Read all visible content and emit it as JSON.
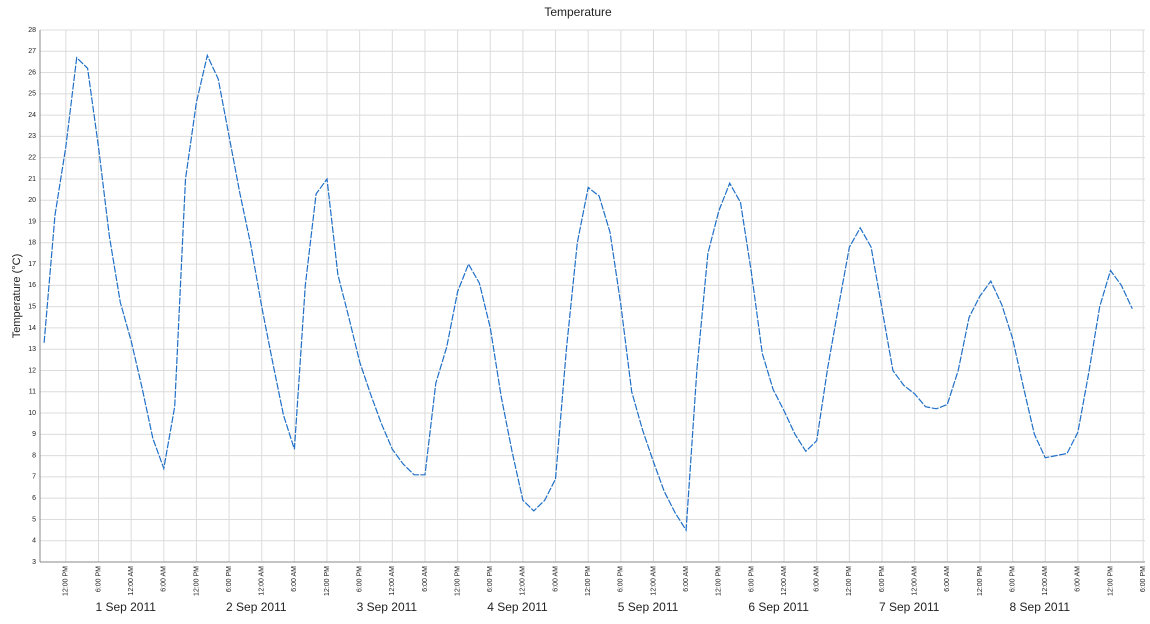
{
  "chart_data": {
    "type": "line",
    "title": "Temperature",
    "y_label": "Temperature (°C)",
    "x": [
      "2011-09-01 08:00",
      "2011-09-01 10:00",
      "2011-09-01 12:00",
      "2011-09-01 14:00",
      "2011-09-01 16:00",
      "2011-09-01 18:00",
      "2011-09-01 20:00",
      "2011-09-01 22:00",
      "2011-09-02 00:00",
      "2011-09-02 02:00",
      "2011-09-02 04:00",
      "2011-09-02 06:00",
      "2011-09-02 08:00",
      "2011-09-02 10:00",
      "2011-09-02 12:00",
      "2011-09-02 14:00",
      "2011-09-02 16:00",
      "2011-09-02 18:00",
      "2011-09-02 20:00",
      "2011-09-02 22:00",
      "2011-09-03 00:00",
      "2011-09-03 02:00",
      "2011-09-03 04:00",
      "2011-09-03 06:00",
      "2011-09-03 08:00",
      "2011-09-03 10:00",
      "2011-09-03 12:00",
      "2011-09-03 14:00",
      "2011-09-03 16:00",
      "2011-09-03 18:00",
      "2011-09-03 20:00",
      "2011-09-03 22:00",
      "2011-09-04 00:00",
      "2011-09-04 02:00",
      "2011-09-04 04:00",
      "2011-09-04 06:00",
      "2011-09-04 08:00",
      "2011-09-04 10:00",
      "2011-09-04 12:00",
      "2011-09-04 14:00",
      "2011-09-04 16:00",
      "2011-09-04 18:00",
      "2011-09-04 20:00",
      "2011-09-04 22:00",
      "2011-09-05 00:00",
      "2011-09-05 02:00",
      "2011-09-05 04:00",
      "2011-09-05 06:00",
      "2011-09-05 08:00",
      "2011-09-05 10:00",
      "2011-09-05 12:00",
      "2011-09-05 14:00",
      "2011-09-05 16:00",
      "2011-09-05 18:00",
      "2011-09-05 20:00",
      "2011-09-05 22:00",
      "2011-09-06 00:00",
      "2011-09-06 02:00",
      "2011-09-06 04:00",
      "2011-09-06 06:00",
      "2011-09-06 08:00",
      "2011-09-06 10:00",
      "2011-09-06 12:00",
      "2011-09-06 14:00",
      "2011-09-06 16:00",
      "2011-09-06 18:00",
      "2011-09-06 20:00",
      "2011-09-06 22:00",
      "2011-09-07 00:00",
      "2011-09-07 02:00",
      "2011-09-07 04:00",
      "2011-09-07 06:00",
      "2011-09-07 08:00",
      "2011-09-07 10:00",
      "2011-09-07 12:00",
      "2011-09-07 14:00",
      "2011-09-07 16:00",
      "2011-09-07 18:00",
      "2011-09-07 20:00",
      "2011-09-07 22:00",
      "2011-09-08 00:00",
      "2011-09-08 02:00",
      "2011-09-08 04:00",
      "2011-09-08 06:00",
      "2011-09-08 08:00",
      "2011-09-08 10:00",
      "2011-09-08 12:00",
      "2011-09-08 14:00",
      "2011-09-08 16:00",
      "2011-09-08 18:00",
      "2011-09-08 20:00",
      "2011-09-08 22:00",
      "2011-09-09 00:00",
      "2011-09-09 02:00",
      "2011-09-09 04:00",
      "2011-09-09 06:00",
      "2011-09-09 08:00",
      "2011-09-09 10:00",
      "2011-09-09 12:00",
      "2011-09-09 14:00",
      "2011-09-09 16:00"
    ],
    "series": [
      {
        "name": "Temperature",
        "color": "#1f6fc8",
        "values": [
          13.3,
          19.3,
          22.5,
          26.7,
          26.2,
          22.5,
          18.3,
          15.2,
          13.4,
          11.2,
          8.8,
          7.4,
          10.3,
          21,
          24.6,
          26.8,
          25.7,
          23,
          20.3,
          17.9,
          15,
          12.4,
          9.9,
          8.3,
          16,
          20.3,
          21,
          16.5,
          14.5,
          12.4,
          10.9,
          9.5,
          8.3,
          7.6,
          7.1,
          7.1,
          11.4,
          13.1,
          15.7,
          17,
          16.1,
          14,
          10.8,
          8.2,
          5.9,
          5.4,
          5.9,
          6.9,
          13,
          18,
          20.6,
          20.2,
          18.5,
          15.1,
          11,
          9.2,
          7.7,
          6.3,
          5.3,
          4.5,
          12.1,
          17.5,
          19.5,
          20.8,
          19.9,
          16.6,
          12.8,
          11.1,
          10.1,
          9,
          8.2,
          8.7,
          12.1,
          15,
          17.8,
          18.7,
          17.8,
          14.9,
          12,
          11.3,
          10.9,
          10.3,
          10.2,
          10.4,
          12,
          14.5,
          15.5,
          16.2,
          15.1,
          13.5,
          11.2,
          9,
          7.9,
          8,
          8.1,
          9.1,
          11.9,
          15,
          16.7,
          16,
          14.9
        ]
      }
    ],
    "xlim": [
      "2011-09-01 07:15",
      "2011-09-09 18:20"
    ],
    "xticks": [
      {
        "value": "2011-09-01 12:00",
        "label": "12:00 PM"
      },
      {
        "value": "2011-09-01 18:00",
        "label": "6:00 PM"
      },
      {
        "value": "2011-09-02 00:00",
        "label": "12:00 AM"
      },
      {
        "value": "2011-09-02 06:00",
        "label": "6:00 AM"
      },
      {
        "value": "2011-09-02 12:00",
        "label": "12:00 PM"
      },
      {
        "value": "2011-09-02 18:00",
        "label": "6:00 PM"
      },
      {
        "value": "2011-09-03 00:00",
        "label": "12:00 AM"
      },
      {
        "value": "2011-09-03 06:00",
        "label": "6:00 AM"
      },
      {
        "value": "2011-09-03 12:00",
        "label": "12:00 PM"
      },
      {
        "value": "2011-09-03 18:00",
        "label": "6:00 PM"
      },
      {
        "value": "2011-09-04 00:00",
        "label": "12:00 AM"
      },
      {
        "value": "2011-09-04 06:00",
        "label": "6:00 AM"
      },
      {
        "value": "2011-09-04 12:00",
        "label": "12:00 PM"
      },
      {
        "value": "2011-09-04 18:00",
        "label": "6:00 PM"
      },
      {
        "value": "2011-09-05 00:00",
        "label": "12:00 AM"
      },
      {
        "value": "2011-09-05 06:00",
        "label": "6:00 AM"
      },
      {
        "value": "2011-09-05 12:00",
        "label": "12:00 PM"
      },
      {
        "value": "2011-09-05 18:00",
        "label": "6:00 PM"
      },
      {
        "value": "2011-09-06 00:00",
        "label": "12:00 AM"
      },
      {
        "value": "2011-09-06 06:00",
        "label": "6:00 AM"
      },
      {
        "value": "2011-09-06 12:00",
        "label": "12:00 PM"
      },
      {
        "value": "2011-09-06 18:00",
        "label": "6:00 PM"
      },
      {
        "value": "2011-09-07 00:00",
        "label": "12:00 AM"
      },
      {
        "value": "2011-09-07 06:00",
        "label": "6:00 AM"
      },
      {
        "value": "2011-09-07 12:00",
        "label": "12:00 PM"
      },
      {
        "value": "2011-09-07 18:00",
        "label": "6:00 PM"
      },
      {
        "value": "2011-09-08 00:00",
        "label": "12:00 AM"
      },
      {
        "value": "2011-09-08 06:00",
        "label": "6:00 AM"
      },
      {
        "value": "2011-09-08 12:00",
        "label": "12:00 PM"
      },
      {
        "value": "2011-09-08 18:00",
        "label": "6:00 PM"
      },
      {
        "value": "2011-09-09 00:00",
        "label": "12:00 AM"
      },
      {
        "value": "2011-09-09 06:00",
        "label": "6:00 AM"
      },
      {
        "value": "2011-09-09 12:00",
        "label": "12:00 PM"
      },
      {
        "value": "2011-09-09 18:00",
        "label": "6:00 PM"
      }
    ],
    "xticks_secondary": [
      {
        "value": "2011-09-01 23:00",
        "label": "1 Sep 2011"
      },
      {
        "value": "2011-09-02 23:00",
        "label": "2 Sep 2011"
      },
      {
        "value": "2011-09-03 23:00",
        "label": "3 Sep 2011"
      },
      {
        "value": "2011-09-04 23:00",
        "label": "4 Sep 2011"
      },
      {
        "value": "2011-09-05 23:00",
        "label": "5 Sep 2011"
      },
      {
        "value": "2011-09-06 23:00",
        "label": "6 Sep 2011"
      },
      {
        "value": "2011-09-07 23:00",
        "label": "7 Sep 2011"
      },
      {
        "value": "2011-09-08 23:00",
        "label": "8 Sep 2011"
      }
    ],
    "ylim": [
      3,
      28
    ],
    "yticks": [
      3,
      4,
      5,
      6,
      7,
      8,
      9,
      10,
      11,
      12,
      13,
      14,
      15,
      16,
      17,
      18,
      19,
      20,
      21,
      22,
      23,
      24,
      25,
      26,
      27,
      28
    ],
    "grid": true
  }
}
